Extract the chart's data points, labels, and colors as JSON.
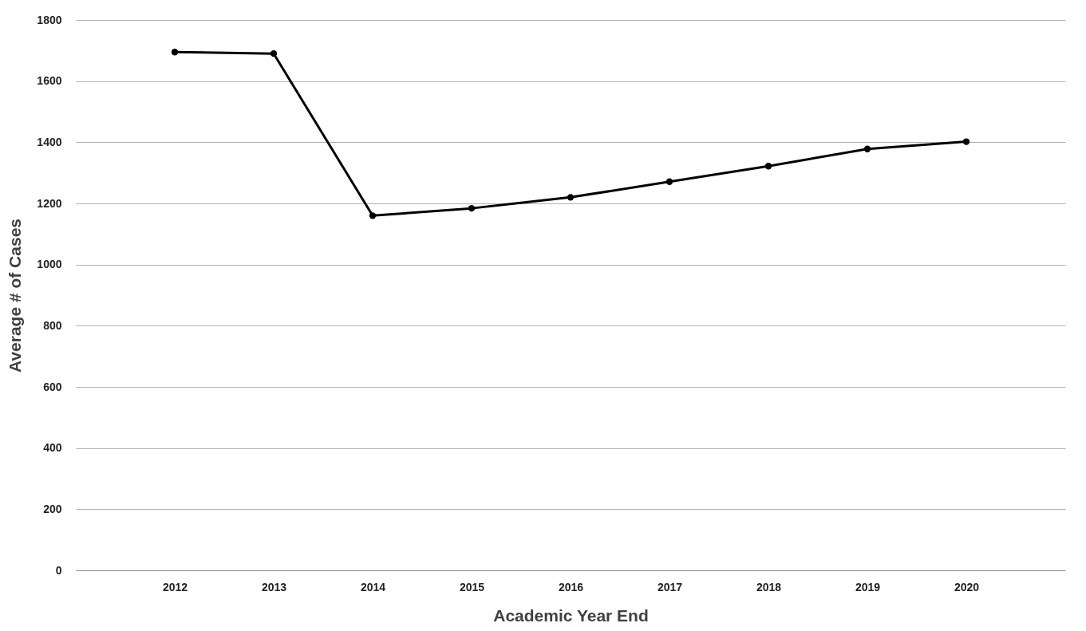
{
  "chart_data": {
    "type": "line",
    "xlabel": "Academic Year End",
    "ylabel": "Average # of Cases",
    "categories": [
      "2012",
      "2013",
      "2014",
      "2015",
      "2016",
      "2017",
      "2018",
      "2019",
      "2020"
    ],
    "series": [
      {
        "color": "#000000",
        "values": [
          1695,
          1690,
          1160,
          1184,
          1220,
          1271,
          1322,
          1378,
          1402
        ]
      }
    ],
    "ylim": [
      0,
      1800
    ],
    "yticks": [
      0,
      200,
      400,
      600,
      800,
      1000,
      1200,
      1400,
      1600,
      1800
    ],
    "grid": "y",
    "marker": "circle",
    "line_style": "solid",
    "legend": false
  }
}
